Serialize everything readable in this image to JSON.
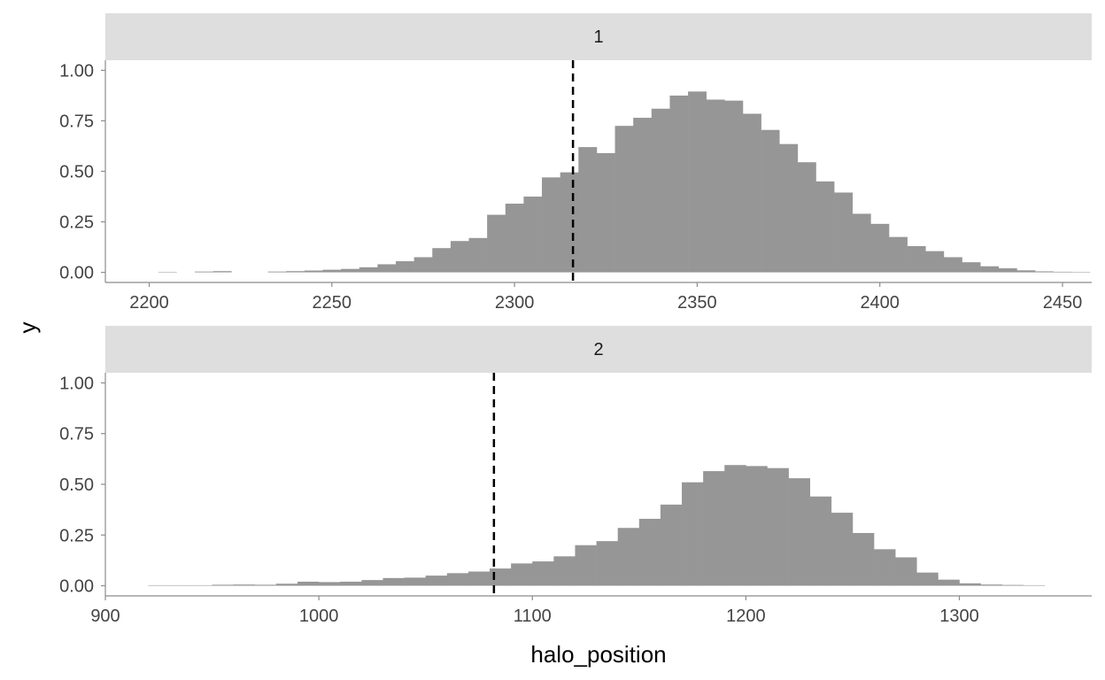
{
  "chart_data": [
    {
      "type": "bar",
      "facet_label": "1",
      "xlim": [
        2188,
        2458
      ],
      "ylim": [
        -0.05,
        1.05
      ],
      "x_ticks": [
        2200,
        2250,
        2300,
        2350,
        2400,
        2450
      ],
      "y_ticks": [
        "0.00",
        "0.25",
        "0.50",
        "0.75",
        "1.00"
      ],
      "y_tick_values": [
        0,
        0.25,
        0.5,
        0.75,
        1.0
      ],
      "bin_start": 2197.5,
      "bin_width": 5,
      "values": [
        0,
        0.002,
        0,
        0.004,
        0.006,
        0,
        0,
        0.004,
        0.006,
        0.009,
        0.013,
        0.017,
        0.025,
        0.04,
        0.055,
        0.075,
        0.12,
        0.155,
        0.17,
        0.285,
        0.34,
        0.375,
        0.47,
        0.495,
        0.62,
        0.59,
        0.725,
        0.765,
        0.81,
        0.875,
        0.895,
        0.855,
        0.85,
        0.785,
        0.705,
        0.635,
        0.545,
        0.45,
        0.395,
        0.29,
        0.24,
        0.175,
        0.13,
        0.105,
        0.075,
        0.05,
        0.03,
        0.02,
        0.01,
        0.005,
        0.003,
        0.002
      ],
      "vline_x": 2316
    },
    {
      "type": "bar",
      "facet_label": "2",
      "xlim": [
        900,
        1362
      ],
      "ylim": [
        -0.05,
        1.05
      ],
      "x_ticks": [
        900,
        1000,
        1100,
        1200,
        1300
      ],
      "y_ticks": [
        "0.00",
        "0.25",
        "0.50",
        "0.75",
        "1.00"
      ],
      "y_tick_values": [
        0,
        0.25,
        0.5,
        0.75,
        1.0
      ],
      "bin_start": 920,
      "bin_width": 10,
      "values": [
        0.002,
        0.002,
        0.002,
        0.005,
        0.006,
        0.005,
        0.01,
        0.02,
        0.018,
        0.02,
        0.028,
        0.038,
        0.04,
        0.05,
        0.062,
        0.07,
        0.085,
        0.11,
        0.12,
        0.145,
        0.2,
        0.22,
        0.285,
        0.33,
        0.4,
        0.51,
        0.565,
        0.595,
        0.59,
        0.58,
        0.53,
        0.44,
        0.36,
        0.26,
        0.18,
        0.14,
        0.065,
        0.03,
        0.012,
        0.006,
        0.004,
        0.002
      ],
      "vline_x": 1082
    }
  ],
  "axis": {
    "xlabel": "halo_position",
    "ylabel": "y"
  },
  "colors": {
    "bar": "#969696",
    "strip": "#dedede",
    "vline": "#000000"
  }
}
